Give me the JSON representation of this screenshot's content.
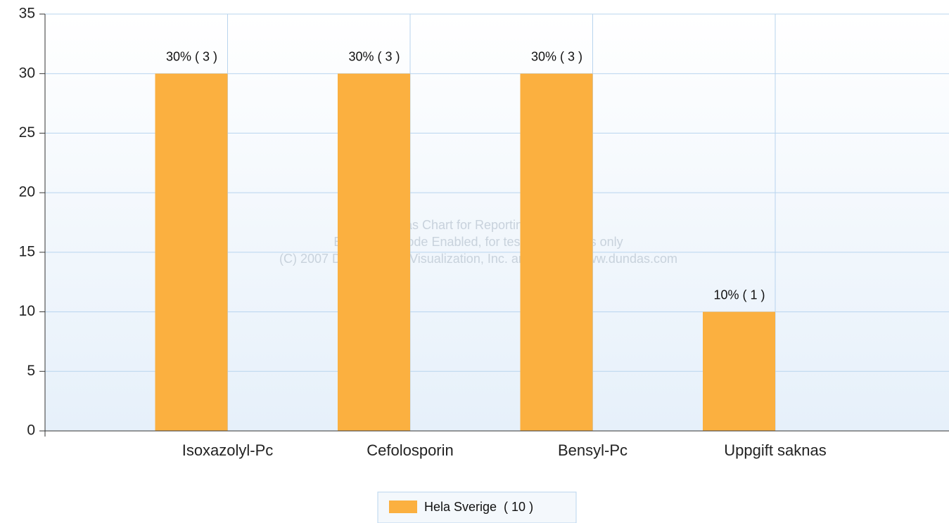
{
  "chart_data": {
    "type": "bar",
    "categories": [
      "Isoxazolyl-Pc",
      "Cefolosporin",
      "Bensyl-Pc",
      "Uppgift saknas"
    ],
    "series": [
      {
        "name": "Hela Sverige  ( 10 )",
        "color": "#fbb040",
        "values": [
          30,
          30,
          30,
          10
        ],
        "value_labels": [
          "30% ( 3 )",
          "30% ( 3 )",
          "30% ( 3 )",
          "10% ( 1 )"
        ]
      }
    ],
    "ylim": [
      0,
      35
    ],
    "yticks": [
      0,
      5,
      10,
      15,
      20,
      25,
      30,
      35
    ],
    "grid": true,
    "watermark": [
      "Dundas Chart for Reporting Services",
      "Evaluation Mode Enabled, for testing purposes only",
      "(C) 2007 Dundas Data Visualization, Inc. and others, www.dundas.com"
    ]
  }
}
